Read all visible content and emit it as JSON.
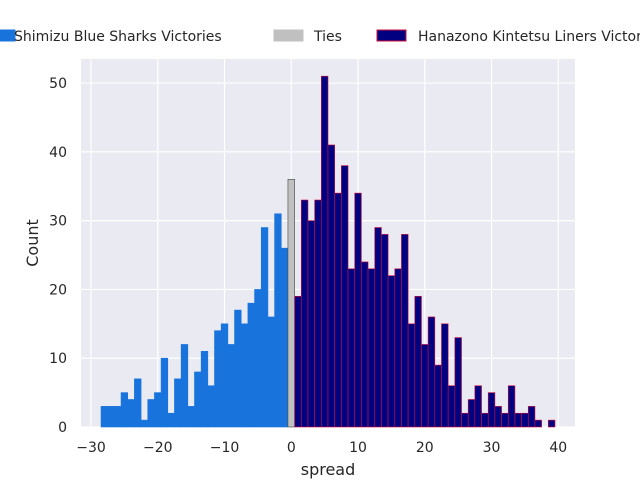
{
  "chart_data": {
    "type": "bar",
    "title": "",
    "xlabel": "spread",
    "ylabel": "Count",
    "xlim": [
      -31.5,
      42.5
    ],
    "ylim": [
      0,
      53.5
    ],
    "xticks": [
      -30,
      -20,
      -10,
      0,
      10,
      20,
      30,
      40
    ],
    "yticks": [
      0,
      10,
      20,
      30,
      40,
      50
    ],
    "grid": true,
    "legend_placement": "top",
    "bin_width": 1,
    "series": [
      {
        "name": "Shimizu Blue Sharks Victories",
        "color": "#1874dc",
        "edge_color": "#1874dc",
        "x": [
          -28,
          -27,
          -26,
          -25,
          -24,
          -23,
          -22,
          -21,
          -20,
          -19,
          -18,
          -17,
          -16,
          -15,
          -14,
          -13,
          -12,
          -11,
          -10,
          -9,
          -8,
          -7,
          -6,
          -5,
          -4,
          -3,
          -2,
          -1
        ],
        "values": [
          3,
          3,
          3,
          5,
          4,
          7,
          1,
          4,
          5,
          10,
          2,
          7,
          12,
          3,
          8,
          11,
          6,
          14,
          15,
          12,
          17,
          15,
          18,
          20,
          29,
          16,
          31,
          26
        ]
      },
      {
        "name": "Ties",
        "color": "#c0c0c0",
        "edge_color": "#444444",
        "x": [
          0
        ],
        "values": [
          36
        ]
      },
      {
        "name": "Hanazono Kintetsu Liners Victories",
        "color": "#000080",
        "edge_color": "#d0103a",
        "x": [
          1,
          2,
          3,
          4,
          5,
          6,
          7,
          8,
          9,
          10,
          11,
          12,
          13,
          14,
          15,
          16,
          17,
          18,
          19,
          20,
          21,
          22,
          23,
          24,
          25,
          26,
          27,
          28,
          29,
          30,
          31,
          32,
          33,
          34,
          35,
          36,
          37,
          38,
          39
        ],
        "values": [
          19,
          33,
          30,
          33,
          51,
          41,
          34,
          38,
          23,
          34,
          24,
          23,
          29,
          28,
          22,
          23,
          28,
          15,
          19,
          12,
          16,
          9,
          15,
          6,
          13,
          2,
          4,
          6,
          2,
          5,
          3,
          2,
          6,
          2,
          2,
          3,
          1,
          0,
          1
        ]
      }
    ]
  },
  "legend": {
    "items": [
      {
        "label": "Shimizu Blue Sharks Victories",
        "color": "#1874dc",
        "edge": "#1874dc"
      },
      {
        "label": "Ties",
        "color": "#c0c0c0",
        "edge": "#c0c0c0"
      },
      {
        "label": "Hanazono Kintetsu Liners Victories",
        "color": "#000080",
        "edge": "#d0103a"
      }
    ]
  },
  "style": {
    "plot_background": "#eaeaf2",
    "grid_color": "#ffffff",
    "text_color": "#262626"
  }
}
